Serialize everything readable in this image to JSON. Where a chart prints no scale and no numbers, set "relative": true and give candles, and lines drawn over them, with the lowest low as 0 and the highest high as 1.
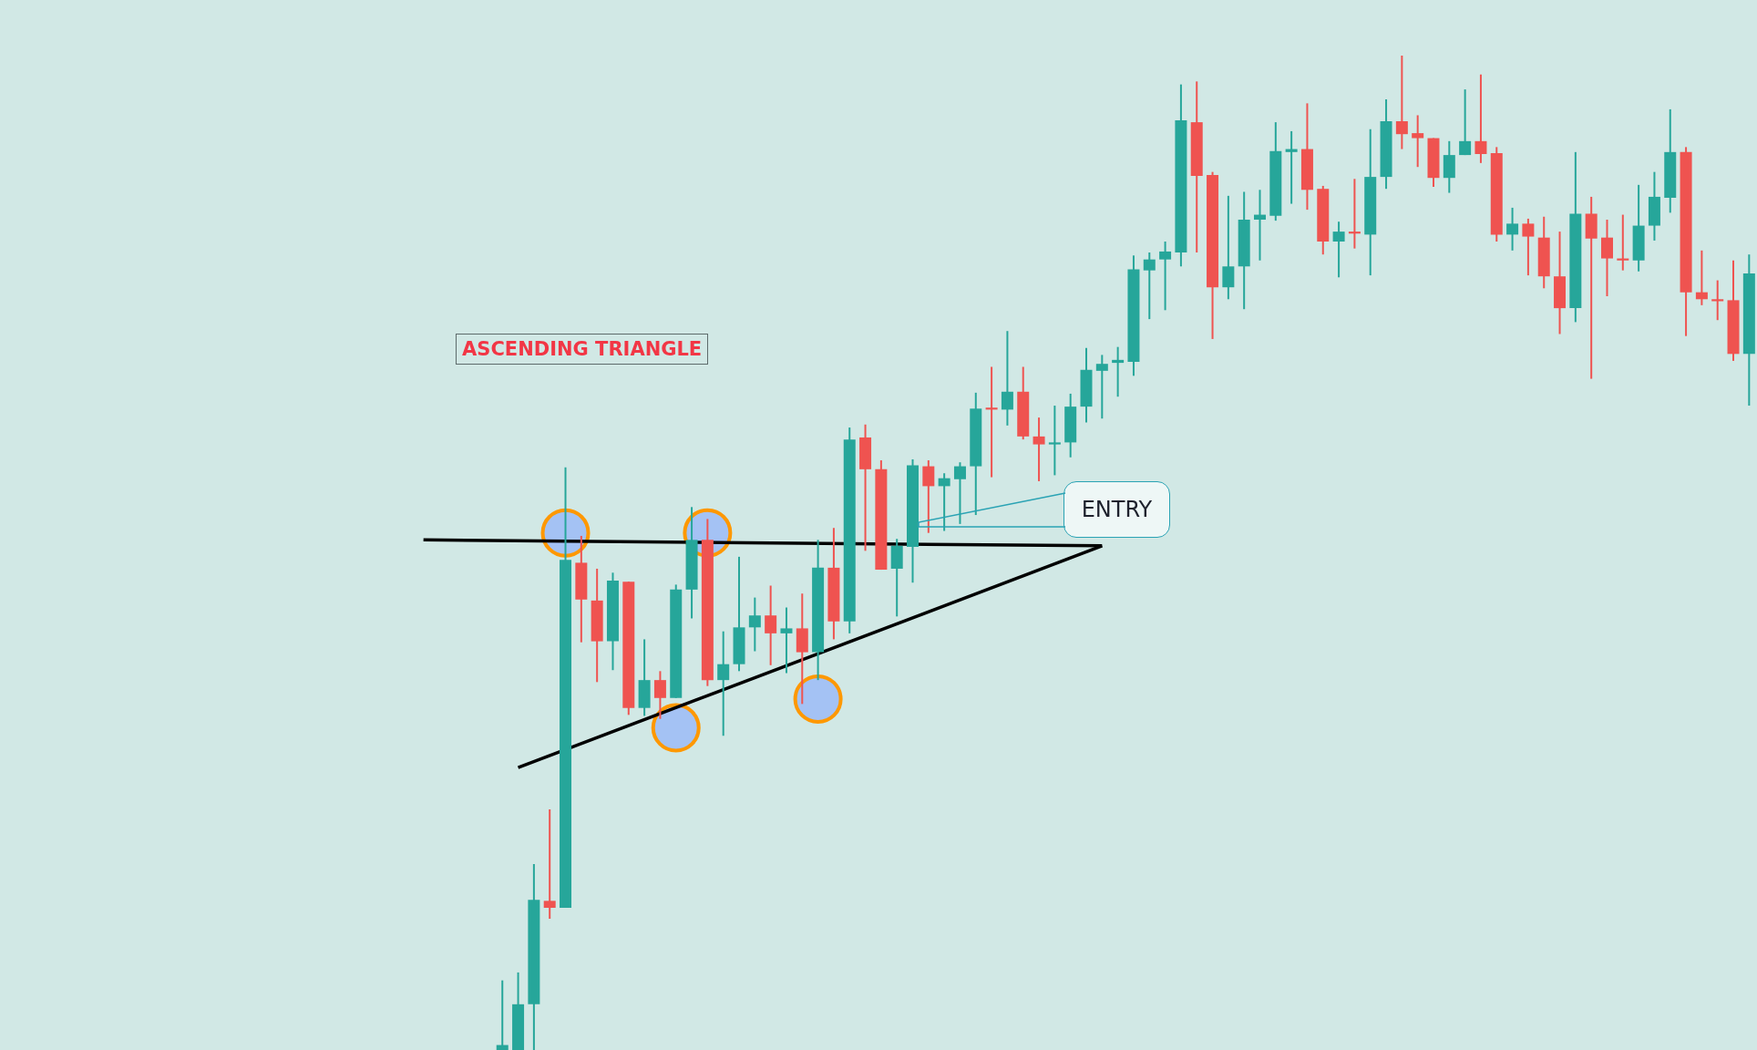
{
  "chart_data": {
    "type": "candlestick",
    "title": "ASCENDING TRIANGLE",
    "annotations": [
      "ENTRY"
    ],
    "relative": true,
    "legend": false,
    "tick_labels": false,
    "categories": [
      null,
      null,
      null,
      null,
      null,
      null,
      null,
      null,
      null,
      null,
      null,
      null,
      null,
      null,
      null,
      null,
      null,
      null,
      null,
      null,
      null,
      null,
      null,
      null,
      null,
      null,
      null,
      null,
      null,
      null,
      null,
      null,
      null,
      null,
      null,
      null,
      null,
      null,
      null,
      null,
      null,
      null,
      null,
      null,
      null,
      null,
      null,
      null,
      null,
      null,
      null,
      null,
      null,
      null,
      null,
      null,
      null,
      null,
      null,
      null,
      null,
      null,
      null,
      null,
      null,
      null,
      null,
      null,
      null,
      null,
      null,
      null,
      null,
      null,
      null,
      null,
      null,
      null,
      null,
      null,
      null,
      null,
      null,
      null,
      null
    ],
    "ohlc": [
      null,
      null,
      null,
      null,
      null,
      [
        0,
        0.07,
        0,
        0.005
      ],
      [
        0,
        0.078,
        0,
        0.046
      ],
      [
        0.046,
        0.187,
        0,
        0.151
      ],
      [
        0.15,
        0.242,
        0.132,
        0.143
      ],
      [
        0.143,
        0.586,
        0.143,
        0.493
      ],
      [
        0.49,
        0.517,
        0.41,
        0.453
      ],
      [
        0.452,
        0.484,
        0.37,
        0.411
      ],
      [
        0.411,
        0.48,
        0.382,
        0.472
      ],
      [
        0.471,
        0.471,
        0.337,
        0.344
      ],
      [
        0.344,
        0.413,
        0.336,
        0.372
      ],
      [
        0.372,
        0.381,
        0.333,
        0.354
      ],
      [
        0.354,
        0.468,
        0.354,
        0.463
      ],
      [
        0.463,
        0.546,
        0.434,
        0.513
      ],
      [
        0.513,
        0.534,
        0.366,
        0.372
      ],
      [
        0.372,
        0.421,
        0.316,
        0.388
      ],
      [
        0.388,
        0.496,
        0.381,
        0.425
      ],
      [
        0.425,
        0.455,
        0.401,
        0.437
      ],
      [
        0.437,
        0.467,
        0.387,
        0.419
      ],
      [
        0.419,
        0.445,
        0.379,
        0.424
      ],
      [
        0.424,
        0.459,
        0.348,
        0.4
      ],
      [
        0.4,
        0.513,
        0.372,
        0.485
      ],
      [
        0.485,
        0.525,
        0.413,
        0.431
      ],
      [
        0.431,
        0.626,
        0.419,
        0.614
      ],
      [
        0.616,
        0.629,
        0.502,
        0.584
      ],
      [
        0.584,
        0.593,
        0.483,
        0.483
      ],
      [
        0.484,
        0.514,
        0.436,
        0.507
      ],
      [
        0.506,
        0.594,
        0.47,
        0.588
      ],
      [
        0.587,
        0.593,
        0.52,
        0.567
      ],
      [
        0.567,
        0.58,
        0.522,
        0.575
      ],
      [
        0.574,
        0.591,
        0.529,
        0.587
      ],
      [
        0.587,
        0.661,
        0.538,
        0.645
      ],
      [
        0.646,
        0.687,
        0.576,
        0.644
      ],
      [
        0.644,
        0.723,
        0.628,
        0.662
      ],
      [
        0.662,
        0.687,
        0.614,
        0.617
      ],
      [
        0.617,
        0.636,
        0.572,
        0.609
      ],
      [
        0.609,
        0.648,
        0.578,
        0.611
      ],
      [
        0.611,
        0.66,
        0.596,
        0.647
      ],
      [
        0.647,
        0.706,
        0.631,
        0.684
      ],
      [
        0.683,
        0.699,
        0.635,
        0.69
      ],
      [
        0.691,
        0.707,
        0.657,
        0.694
      ],
      [
        0.692,
        0.799,
        0.678,
        0.785
      ],
      [
        0.784,
        0.802,
        0.735,
        0.795
      ],
      [
        0.795,
        0.813,
        0.744,
        0.803
      ],
      [
        0.802,
        0.971,
        0.788,
        0.935
      ],
      [
        0.933,
        0.974,
        0.802,
        0.879
      ],
      [
        0.88,
        0.883,
        0.715,
        0.767
      ],
      [
        0.767,
        0.859,
        0.755,
        0.788
      ],
      [
        0.788,
        0.863,
        0.745,
        0.835
      ],
      [
        0.835,
        0.865,
        0.794,
        0.84
      ],
      [
        0.839,
        0.933,
        0.834,
        0.904
      ],
      [
        0.903,
        0.924,
        0.851,
        0.906
      ],
      [
        0.906,
        0.952,
        0.845,
        0.865
      ],
      [
        0.866,
        0.869,
        0.8,
        0.813
      ],
      [
        0.813,
        0.833,
        0.777,
        0.823
      ],
      [
        0.823,
        0.876,
        0.806,
        0.821
      ],
      [
        0.82,
        0.926,
        0.779,
        0.878
      ],
      [
        0.878,
        0.956,
        0.866,
        0.934
      ],
      [
        0.934,
        1,
        0.906,
        0.921
      ],
      [
        0.922,
        0.94,
        0.888,
        0.917
      ],
      [
        0.917,
        0.917,
        0.868,
        0.877
      ],
      [
        0.877,
        0.914,
        0.862,
        0.9
      ],
      [
        0.9,
        0.966,
        0.9,
        0.914
      ],
      [
        0.914,
        0.981,
        0.892,
        0.901
      ],
      [
        0.902,
        0.908,
        0.813,
        0.82
      ],
      [
        0.82,
        0.847,
        0.804,
        0.831
      ],
      [
        0.831,
        0.836,
        0.779,
        0.818
      ],
      [
        0.817,
        0.838,
        0.766,
        0.778
      ],
      [
        0.778,
        0.823,
        0.72,
        0.746
      ],
      [
        0.746,
        0.903,
        0.732,
        0.841
      ],
      [
        0.841,
        0.858,
        0.675,
        0.816
      ],
      [
        0.817,
        0.835,
        0.758,
        0.796
      ],
      [
        0.796,
        0.84,
        0.784,
        0.794
      ],
      [
        0.794,
        0.87,
        0.783,
        0.829
      ],
      [
        0.829,
        0.883,
        0.814,
        0.858
      ],
      [
        0.857,
        0.946,
        0.842,
        0.903
      ],
      [
        0.903,
        0.908,
        0.718,
        0.762
      ],
      [
        0.762,
        0.804,
        0.749,
        0.755
      ],
      [
        0.755,
        0.774,
        0.734,
        0.753
      ],
      [
        0.754,
        0.794,
        0.693,
        0.7
      ],
      [
        0.7,
        0.8,
        0.648,
        0.781
      ]
    ],
    "colors": [
      null,
      null,
      null,
      null,
      null,
      "#26a69a",
      "#26a69a",
      "#26a69a",
      "#ef5350",
      "#26a69a",
      "#ef5350",
      "#ef5350",
      "#26a69a",
      "#ef5350",
      "#26a69a",
      "#ef5350",
      "#26a69a",
      "#26a69a",
      "#ef5350",
      "#26a69a",
      "#26a69a",
      "#26a69a",
      "#ef5350",
      "#26a69a",
      "#ef5350",
      "#26a69a",
      "#ef5350",
      "#26a69a",
      "#ef5350",
      "#ef5350",
      "#26a69a",
      "#26a69a",
      "#ef5350",
      "#26a69a",
      "#26a69a",
      "#26a69a",
      "#ef5350",
      "#26a69a",
      "#ef5350",
      "#ef5350",
      "#26a69a",
      "#26a69a",
      "#26a69a",
      "#26a69a",
      "#26a69a",
      "#26a69a",
      "#26a69a",
      "#26a69a",
      "#26a69a",
      "#ef5350",
      "#ef5350",
      "#26a69a",
      "#26a69a",
      "#26a69a",
      "#26a69a",
      "#26a69a",
      "#ef5350",
      "#ef5350",
      "#26a69a",
      "#ef5350",
      "#26a69a",
      "#26a69a",
      "#ef5350",
      "#ef5350",
      "#ef5350",
      "#26a69a",
      "#26a69a",
      "#ef5350",
      "#ef5350",
      "#26a69a",
      "#ef5350",
      "#ef5350",
      "#ef5350",
      "#26a69a",
      "#ef5350",
      "#ef5350",
      "#ef5350",
      "#26a69a",
      "#26a69a",
      "#26a69a",
      "#ef5350",
      "#ef5350",
      "#ef5350",
      "#ef5350",
      "#26a69a"
    ],
    "series": [
      {
        "type": "line",
        "color": "#000000",
        "values": [
          0.513,
          null,
          null,
          null,
          null,
          null,
          null,
          null,
          null,
          null,
          null,
          null,
          null,
          null,
          null,
          null,
          null,
          null,
          null,
          null,
          null,
          null,
          null,
          null,
          null,
          null,
          null,
          null,
          null,
          null,
          null,
          null,
          null,
          null,
          null,
          null,
          null,
          null,
          null,
          null,
          null,
          null,
          null,
          0.507,
          null,
          null,
          null,
          null,
          null,
          null,
          null,
          null,
          null,
          null,
          null,
          null,
          null,
          null,
          null,
          null,
          null,
          null,
          null,
          null,
          null,
          null,
          null,
          null,
          null,
          null,
          null,
          null,
          null,
          null,
          null,
          null,
          null,
          null,
          null,
          null,
          null,
          null,
          null,
          null,
          null
        ]
      },
      {
        "type": "line",
        "color": "#000000",
        "values": [
          null,
          null,
          null,
          null,
          null,
          null,
          0.284,
          null,
          null,
          null,
          null,
          null,
          null,
          null,
          null,
          null,
          null,
          null,
          null,
          null,
          null,
          null,
          null,
          null,
          null,
          null,
          null,
          null,
          null,
          null,
          null,
          null,
          null,
          null,
          null,
          null,
          null,
          null,
          null,
          null,
          null,
          null,
          null,
          0.507,
          null,
          null,
          null,
          null,
          null,
          null,
          null,
          null,
          null,
          null,
          null,
          null,
          null,
          null,
          null,
          null,
          null,
          null,
          null,
          null,
          null,
          null,
          null,
          null,
          null,
          null,
          null,
          null,
          null,
          null,
          null,
          null,
          null,
          null,
          null,
          null,
          null,
          null,
          null,
          null,
          null
        ]
      },
      {
        "type": "scatter",
        "marker": "circle",
        "color": "#ff9800",
        "values": [
          null,
          null,
          null,
          null,
          null,
          null,
          null,
          null,
          null,
          0.52,
          null,
          null,
          null,
          null,
          null,
          null,
          0.324,
          null,
          0.52,
          null,
          null,
          null,
          null,
          null,
          null,
          0.353,
          null,
          null,
          null,
          null,
          null,
          null,
          null,
          null,
          null,
          null,
          null,
          null,
          null,
          null,
          null,
          null,
          null,
          null,
          null,
          null,
          null,
          null,
          null,
          null,
          null,
          null,
          null,
          null,
          null,
          null,
          null,
          null,
          null,
          null,
          null,
          null,
          null,
          null,
          null,
          null,
          null,
          null,
          null,
          null,
          null,
          null,
          null,
          null,
          null,
          null,
          null,
          null,
          null,
          null,
          null,
          null,
          null,
          null,
          null
        ]
      }
    ]
  }
}
